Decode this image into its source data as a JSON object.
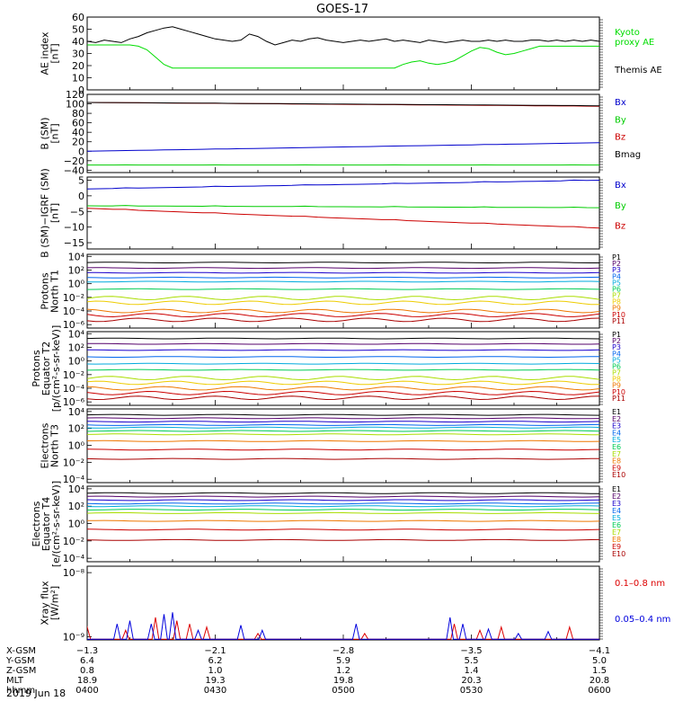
{
  "figure": {
    "title": "GOES-17",
    "date_label": "2019 Jun 18"
  },
  "chart_data": [
    {
      "id": "ae",
      "type": "line",
      "ylabel": [
        "AE index",
        "[nT]"
      ],
      "ylim": [
        0,
        60
      ],
      "yticks": [
        0,
        10,
        20,
        30,
        40,
        50,
        60
      ],
      "tick_labels": [
        "0",
        "10",
        "20",
        "30",
        "40",
        "50",
        "60"
      ],
      "x": [
        0,
        2,
        4,
        6,
        8,
        10,
        12,
        14,
        16,
        18,
        20,
        22,
        24,
        26,
        28,
        30,
        32,
        34,
        36,
        38,
        40,
        42,
        44,
        46,
        48,
        50,
        52,
        54,
        56,
        58,
        60,
        62,
        64,
        66,
        68,
        70,
        72,
        74,
        76,
        78,
        80,
        82,
        84,
        86,
        88,
        90,
        92,
        94,
        96,
        98,
        100,
        102,
        104,
        106,
        108,
        110,
        112,
        114,
        116,
        118,
        120
      ],
      "series": [
        {
          "name": "Kyoto proxy AE",
          "color": "#00dd00",
          "values": [
            37,
            37,
            37,
            37,
            37,
            37,
            36,
            33,
            27,
            21,
            18,
            18,
            18,
            18,
            18,
            18,
            18,
            18,
            18,
            18,
            18,
            18,
            18,
            18,
            18,
            18,
            18,
            18,
            18,
            18,
            18,
            18,
            18,
            18,
            18,
            18,
            18,
            18,
            18,
            18,
            18,
            18,
            18,
            18,
            18,
            18,
            18,
            18,
            18,
            18,
            18,
            18,
            18,
            18,
            18,
            18,
            18,
            18,
            18,
            18,
            18
          ]
        },
        {
          "name": "Themis AE",
          "color": "#000000",
          "values": [
            40,
            39,
            41,
            40,
            39,
            42,
            44,
            47,
            49,
            51,
            52,
            50,
            48,
            46,
            44,
            42,
            41,
            40,
            41,
            46,
            44,
            40,
            37,
            39,
            41,
            40,
            42,
            43,
            41,
            40,
            39,
            40,
            41,
            40,
            41,
            42,
            40,
            41,
            40,
            39,
            41,
            40,
            39,
            40,
            41,
            40,
            40,
            41,
            40,
            41,
            40,
            40,
            41,
            41,
            40,
            41,
            40,
            41,
            40,
            41,
            40
          ]
        }
      ],
      "overrides": {
        "series_index": 0,
        "from_x": 73,
        "values": [
          18,
          21,
          23,
          24,
          22,
          21,
          22,
          24,
          28,
          32,
          35,
          34,
          31,
          29,
          30,
          32,
          34,
          36,
          36,
          36,
          36,
          36,
          36,
          36,
          36,
          36,
          36,
          36,
          36,
          36,
          36,
          36,
          36,
          36,
          36,
          36,
          36,
          36,
          36,
          36,
          36,
          36,
          36,
          36,
          36,
          36,
          36,
          36
        ]
      },
      "legend": [
        {
          "text": "Kyoto",
          "color": "#00dd00"
        },
        {
          "text": "proxy AE",
          "color": "#00dd00"
        },
        {
          "text": "Themis AE",
          "color": "#000000"
        }
      ]
    },
    {
      "id": "bsm",
      "type": "line",
      "ylabel": [
        "B (SM)",
        "[nT]"
      ],
      "ylim": [
        -45,
        120
      ],
      "yticks": [
        -40,
        -20,
        0,
        20,
        40,
        60,
        80,
        100,
        120
      ],
      "tick_labels": [
        "−40",
        "−20",
        "0",
        "20",
        "40",
        "60",
        "80",
        "100",
        "120"
      ],
      "x_range": [
        0,
        120
      ],
      "series": [
        {
          "name": "Bx",
          "color": "#0000cc",
          "start": 0,
          "end": 18
        },
        {
          "name": "By",
          "color": "#00cc00",
          "start": -29,
          "end": -29
        },
        {
          "name": "Bz",
          "color": "#cc0000",
          "start": 103,
          "end": 95
        },
        {
          "name": "Bmag",
          "color": "#000000",
          "start": 103,
          "end": 96
        }
      ],
      "legend": [
        {
          "text": "Bx",
          "color": "#0000cc"
        },
        {
          "text": "By",
          "color": "#00cc00"
        },
        {
          "text": "Bz",
          "color": "#cc0000"
        },
        {
          "text": "Bmag",
          "color": "#000000"
        }
      ]
    },
    {
      "id": "bigrf",
      "type": "line",
      "ylabel": [
        "B (SM)−IGRF (SM)",
        "[nT]"
      ],
      "ylim": [
        -17,
        6
      ],
      "yticks": [
        -15,
        -10,
        -5,
        0,
        5
      ],
      "tick_labels": [
        "−15",
        "−10",
        "−5",
        "0",
        "5"
      ],
      "x_range": [
        0,
        120
      ],
      "series": [
        {
          "name": "Bx",
          "color": "#0000cc",
          "start": 2.2,
          "end": 5.0
        },
        {
          "name": "By",
          "color": "#00cc00",
          "start": -3.2,
          "end": -3.8
        },
        {
          "name": "Bz",
          "color": "#cc0000",
          "start": -4.0,
          "end": -10.3
        }
      ],
      "legend": [
        {
          "text": "Bx",
          "color": "#0000cc"
        },
        {
          "text": "By",
          "color": "#00cc00"
        },
        {
          "text": "Bz",
          "color": "#cc0000"
        }
      ]
    },
    {
      "id": "pn",
      "type": "line",
      "log_scale": true,
      "ylabel": [
        "Protons",
        "North T1"
      ],
      "ylim": [
        -6.5,
        4.3
      ],
      "yticks": [
        4,
        2,
        0,
        -2,
        -4,
        -6
      ],
      "tick_labels": [
        "10⁴",
        "10²",
        "10⁰",
        "10⁻²",
        "10⁻⁴",
        "10⁻⁶"
      ],
      "x_range": [
        0,
        120
      ],
      "series": [
        {
          "name": "P1",
          "color": "#000000",
          "log_value": 3.1
        },
        {
          "name": "P2",
          "color": "#55006a",
          "log_value": 2.3
        },
        {
          "name": "P3",
          "color": "#1a00cc",
          "log_value": 1.6
        },
        {
          "name": "P4",
          "color": "#0066ee",
          "log_value": 0.9
        },
        {
          "name": "P5",
          "color": "#00aadd",
          "log_value": 0.3
        },
        {
          "name": "P6",
          "color": "#00cc55",
          "log_value": -0.8
        },
        {
          "name": "P7",
          "color": "#aadd00",
          "log_value": -2.1
        },
        {
          "name": "P8",
          "color": "#eecc00",
          "log_value": -2.8
        },
        {
          "name": "P9",
          "color": "#ee7700",
          "log_value": -4.0
        },
        {
          "name": "P10",
          "color": "#cc0000",
          "log_value": -4.6
        },
        {
          "name": "P11",
          "color": "#aa0000",
          "log_value": -5.3
        }
      ],
      "legend": [
        "P1",
        "P2",
        "P3",
        "P4",
        "P5",
        "P6",
        "P7",
        "P8",
        "P9",
        "P10",
        "P11"
      ]
    },
    {
      "id": "pe",
      "type": "line",
      "log_scale": true,
      "ylabel": [
        "Protons",
        "Equator T2",
        "[p/(cm²-s-sr-keV)]"
      ],
      "ylim": [
        -6.5,
        4.3
      ],
      "yticks": [
        4,
        2,
        0,
        -2,
        -4,
        -6
      ],
      "tick_labels": [
        "10⁴",
        "10²",
        "10⁰",
        "10⁻²",
        "10⁻⁴",
        "10⁻⁶"
      ],
      "x_range": [
        0,
        120
      ],
      "series": [
        {
          "name": "P1",
          "color": "#000000",
          "log_value": 3.3
        },
        {
          "name": "P2",
          "color": "#55006a",
          "log_value": 2.5
        },
        {
          "name": "P3",
          "color": "#1a00cc",
          "log_value": 1.6
        },
        {
          "name": "P4",
          "color": "#0066ee",
          "log_value": 0.6
        },
        {
          "name": "P5",
          "color": "#00aadd",
          "log_value": -0.4
        },
        {
          "name": "P6",
          "color": "#00cc55",
          "log_value": -1.3
        },
        {
          "name": "P7",
          "color": "#aadd00",
          "log_value": -2.5
        },
        {
          "name": "P8",
          "color": "#eecc00",
          "log_value": -3.2
        },
        {
          "name": "P9",
          "color": "#ee7700",
          "log_value": -4.0
        },
        {
          "name": "P10",
          "color": "#cc0000",
          "log_value": -4.7
        },
        {
          "name": "P11",
          "color": "#aa0000",
          "log_value": -5.4
        }
      ],
      "legend": [
        "P1",
        "P2",
        "P3",
        "P4",
        "P5",
        "P6",
        "P7",
        "P8",
        "P9",
        "P10",
        "P11"
      ]
    },
    {
      "id": "en",
      "type": "line",
      "log_scale": true,
      "ylabel": [
        "Electrons",
        "North T3"
      ],
      "ylim": [
        -4.4,
        4.3
      ],
      "yticks": [
        4,
        2,
        0,
        -2,
        -4
      ],
      "tick_labels": [
        "10⁴",
        "10²",
        "10⁰",
        "10⁻²",
        "10⁻⁴"
      ],
      "x_range": [
        0,
        120
      ],
      "series": [
        {
          "name": "E1",
          "color": "#000000",
          "log_value": 3.6
        },
        {
          "name": "E2",
          "color": "#55006a",
          "log_value": 3.2
        },
        {
          "name": "E3",
          "color": "#1a00cc",
          "log_value": 2.8
        },
        {
          "name": "E4",
          "color": "#0066ee",
          "log_value": 2.4
        },
        {
          "name": "E5",
          "color": "#00aadd",
          "log_value": 2.1
        },
        {
          "name": "E6",
          "color": "#00cc55",
          "log_value": 1.7
        },
        {
          "name": "E7",
          "color": "#aadd00",
          "log_value": 1.3
        },
        {
          "name": "E8",
          "color": "#ee7700",
          "log_value": 0.5
        },
        {
          "name": "E9",
          "color": "#cc0000",
          "log_value": -0.5
        },
        {
          "name": "E10",
          "color": "#aa0000",
          "log_value": -1.6
        }
      ],
      "legend": [
        "E1",
        "E2",
        "E3",
        "E4",
        "E5",
        "E6",
        "E7",
        "E8",
        "E9",
        "E10"
      ]
    },
    {
      "id": "ee",
      "type": "line",
      "log_scale": true,
      "ylabel": [
        "Electrons",
        "Equator T4",
        "[e/(cm²-s-sr-keV)]"
      ],
      "ylim": [
        -4.4,
        4.3
      ],
      "yticks": [
        4,
        2,
        0,
        -2,
        -4
      ],
      "tick_labels": [
        "10⁴",
        "10²",
        "10⁰",
        "10⁻²",
        "10⁻⁴"
      ],
      "x_range": [
        0,
        120
      ],
      "series": [
        {
          "name": "E1",
          "color": "#000000",
          "log_value": 3.5
        },
        {
          "name": "E2",
          "color": "#55006a",
          "log_value": 3.1
        },
        {
          "name": "E3",
          "color": "#1a00cc",
          "log_value": 2.7
        },
        {
          "name": "E4",
          "color": "#0066ee",
          "log_value": 2.3
        },
        {
          "name": "E5",
          "color": "#00aadd",
          "log_value": 2.0
        },
        {
          "name": "E6",
          "color": "#00cc55",
          "log_value": 1.6
        },
        {
          "name": "E7",
          "color": "#aadd00",
          "log_value": 1.2
        },
        {
          "name": "E8",
          "color": "#ee7700",
          "log_value": 0.3
        },
        {
          "name": "E9",
          "color": "#cc0000",
          "log_value": -0.7
        },
        {
          "name": "E10",
          "color": "#aa0000",
          "log_value": -1.9
        }
      ],
      "legend": [
        "E1",
        "E2",
        "E3",
        "E4",
        "E5",
        "E6",
        "E7",
        "E8",
        "E9",
        "E10"
      ]
    },
    {
      "id": "xray",
      "type": "line",
      "log_scale": true,
      "ylabel": [
        "Xray flux",
        "[W/m²]"
      ],
      "ylim": [
        -9.05,
        -7.9
      ],
      "yticks": [
        -8,
        -9
      ],
      "tick_labels": [
        "10⁻⁸",
        "10⁻⁹"
      ],
      "x_range": [
        0,
        120
      ],
      "series": [
        {
          "name": "0.1–0.8 nm",
          "color": "#dd0000",
          "spikes": [
            [
              0,
              -8.85
            ],
            [
              9,
              -8.9
            ],
            [
              16,
              -8.7
            ],
            [
              21,
              -8.75
            ],
            [
              24,
              -8.8
            ],
            [
              28,
              -8.85
            ],
            [
              40,
              -8.95
            ],
            [
              65,
              -8.95
            ],
            [
              86,
              -8.8
            ],
            [
              92,
              -8.9
            ],
            [
              97,
              -8.85
            ],
            [
              113,
              -8.85
            ]
          ]
        },
        {
          "name": "0.05–0.4 nm",
          "color": "#0000dd",
          "spikes": [
            [
              7,
              -8.8
            ],
            [
              10,
              -8.75
            ],
            [
              15,
              -8.8
            ],
            [
              18,
              -8.65
            ],
            [
              20,
              -8.62
            ],
            [
              26,
              -8.9
            ],
            [
              36,
              -8.82
            ],
            [
              41,
              -8.9
            ],
            [
              63,
              -8.8
            ],
            [
              85,
              -8.7
            ],
            [
              88,
              -8.8
            ],
            [
              94,
              -8.88
            ],
            [
              101,
              -8.95
            ],
            [
              108,
              -8.92
            ]
          ]
        }
      ],
      "legend": [
        {
          "text": "0.1–0.8 nm",
          "color": "#dd0000"
        },
        {
          "text": "0.05–0.4 nm",
          "color": "#0000dd"
        }
      ]
    }
  ],
  "ephemeris": {
    "row_labels": [
      "X-GSM",
      "Y-GSM",
      "Z-GSM",
      "MLT",
      "hhmm"
    ],
    "columns": [
      {
        "x": 0,
        "values": [
          "−1.3",
          "6.4",
          "0.8",
          "18.9",
          "0400"
        ]
      },
      {
        "x": 30,
        "values": [
          "−2.1",
          "6.2",
          "1.0",
          "19.3",
          "0430"
        ]
      },
      {
        "x": 60,
        "values": [
          "−2.8",
          "5.9",
          "1.2",
          "19.8",
          "0500"
        ]
      },
      {
        "x": 90,
        "values": [
          "−3.5",
          "5.5",
          "1.4",
          "20.3",
          "0530"
        ]
      },
      {
        "x": 120,
        "values": [
          "−4.1",
          "5.0",
          "1.5",
          "20.8",
          "0600"
        ]
      }
    ]
  }
}
